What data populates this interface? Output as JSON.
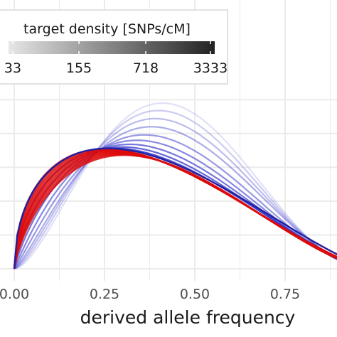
{
  "chart_data": {
    "type": "line",
    "xlabel": "derived allele frequency",
    "ylabel": "",
    "title": "",
    "xlim": [
      0,
      1
    ],
    "ylim": [
      0,
      2.5
    ],
    "grid": true,
    "x_ticks": [
      "0.00",
      "0.25",
      "0.50",
      "0.75"
    ],
    "legend": {
      "title": "target density [SNPs/cM]",
      "type": "colorbar",
      "placement": "top-left",
      "tick_labels": [
        "33",
        "155",
        "718",
        "3333"
      ],
      "gradient": [
        "#e6e6e6",
        "#222222"
      ]
    },
    "series_style": {
      "blue": "#3333cc",
      "red": "#dd0a0a",
      "count_blue": 9,
      "count_red": 10
    },
    "blue_curve_peaks": [
      {
        "peak_x": 0.41,
        "peak_y": 2.45,
        "opacity": 0.15
      },
      {
        "peak_x": 0.4,
        "peak_y": 2.34,
        "opacity": 0.25
      },
      {
        "peak_x": 0.39,
        "peak_y": 2.22,
        "opacity": 0.33
      },
      {
        "peak_x": 0.38,
        "peak_y": 2.1,
        "opacity": 0.41
      },
      {
        "peak_x": 0.36,
        "peak_y": 1.98,
        "opacity": 0.5
      },
      {
        "peak_x": 0.34,
        "peak_y": 1.9,
        "opacity": 0.58
      },
      {
        "peak_x": 0.32,
        "peak_y": 1.84,
        "opacity": 0.67
      },
      {
        "peak_x": 0.3,
        "peak_y": 1.8,
        "opacity": 0.76
      },
      {
        "peak_x": 0.28,
        "peak_y": 1.78,
        "opacity": 0.85
      }
    ]
  }
}
